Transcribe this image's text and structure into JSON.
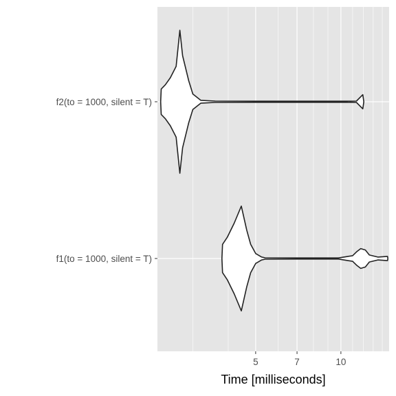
{
  "chart_data": {
    "type": "violin",
    "title": "",
    "xlabel": "Time [milliseconds]",
    "ylabel": "",
    "x_scale": "log",
    "xlim": [
      2.25,
      14.8
    ],
    "x_ticks": [
      5,
      7,
      10
    ],
    "x_tick_labels": [
      "5",
      "7",
      "10"
    ],
    "categories": [
      "f2(to = 1000, silent = T)",
      "f1(to = 1000, silent = T)"
    ],
    "grid": true,
    "legend": "none",
    "colors": {
      "panel_bg": "#e5e5e5",
      "grid": "#ffffff",
      "violin_fill": "#ffffff",
      "violin_stroke": "#222222",
      "tick_text": "#4d4d4d"
    },
    "violins": [
      {
        "category": "f2(to = 1000, silent = T)",
        "profile": [
          [
            2.31,
            0.0
          ],
          [
            2.32,
            18.0
          ],
          [
            2.4,
            24.0
          ],
          [
            2.5,
            34.0
          ],
          [
            2.62,
            50.0
          ],
          [
            2.7,
            101.0
          ],
          [
            2.76,
            65.0
          ],
          [
            2.9,
            30.0
          ],
          [
            3.0,
            11.0
          ],
          [
            3.2,
            2.0
          ],
          [
            3.6,
            1.0
          ],
          [
            5.0,
            0.8
          ],
          [
            7.0,
            0.8
          ],
          [
            10.5,
            0.8
          ],
          [
            11.35,
            1.0
          ],
          [
            11.95,
            10.0
          ],
          [
            12.05,
            0.0
          ]
        ]
      },
      {
        "category": "f1(to = 1000, silent = T)",
        "profile": [
          [
            3.8,
            0.0
          ],
          [
            3.82,
            20.0
          ],
          [
            3.97,
            30.0
          ],
          [
            4.2,
            50.0
          ],
          [
            4.45,
            74.0
          ],
          [
            4.65,
            40.0
          ],
          [
            4.8,
            20.0
          ],
          [
            5.0,
            7.0
          ],
          [
            5.25,
            2.0
          ],
          [
            5.4,
            1.0
          ],
          [
            7.0,
            0.8
          ],
          [
            9.8,
            0.8
          ],
          [
            10.6,
            3.0
          ],
          [
            11.0,
            4.0
          ],
          [
            11.4,
            10.0
          ],
          [
            11.75,
            14.0
          ],
          [
            12.2,
            12.0
          ],
          [
            12.6,
            5.0
          ],
          [
            13.5,
            2.0
          ],
          [
            14.6,
            3.0
          ],
          [
            14.65,
            0.0
          ]
        ]
      }
    ]
  }
}
